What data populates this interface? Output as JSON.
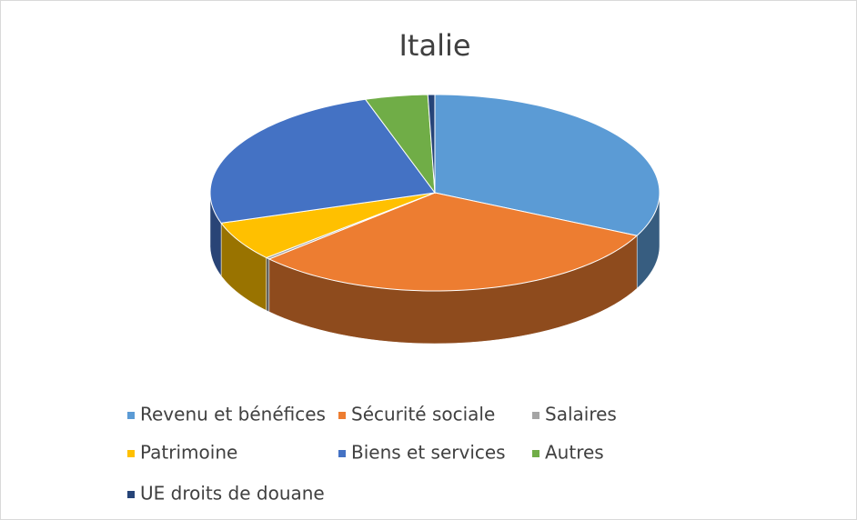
{
  "chart_data": {
    "type": "pie",
    "title": "Italie",
    "categories": [
      "Revenu et bénéfices",
      "Sécurité sociale",
      "Salaires",
      "Patrimoine",
      "Biens et services",
      "Autres",
      "UE droits de douane"
    ],
    "values": [
      32.2,
      31,
      0.3,
      6.5,
      25,
      4.5,
      0.5
    ],
    "colors": [
      "#5b9bd5",
      "#ed7d31",
      "#a5a5a5",
      "#ffc000",
      "#4472c4",
      "#70ad47",
      "#264478"
    ],
    "legend": "bottom"
  }
}
